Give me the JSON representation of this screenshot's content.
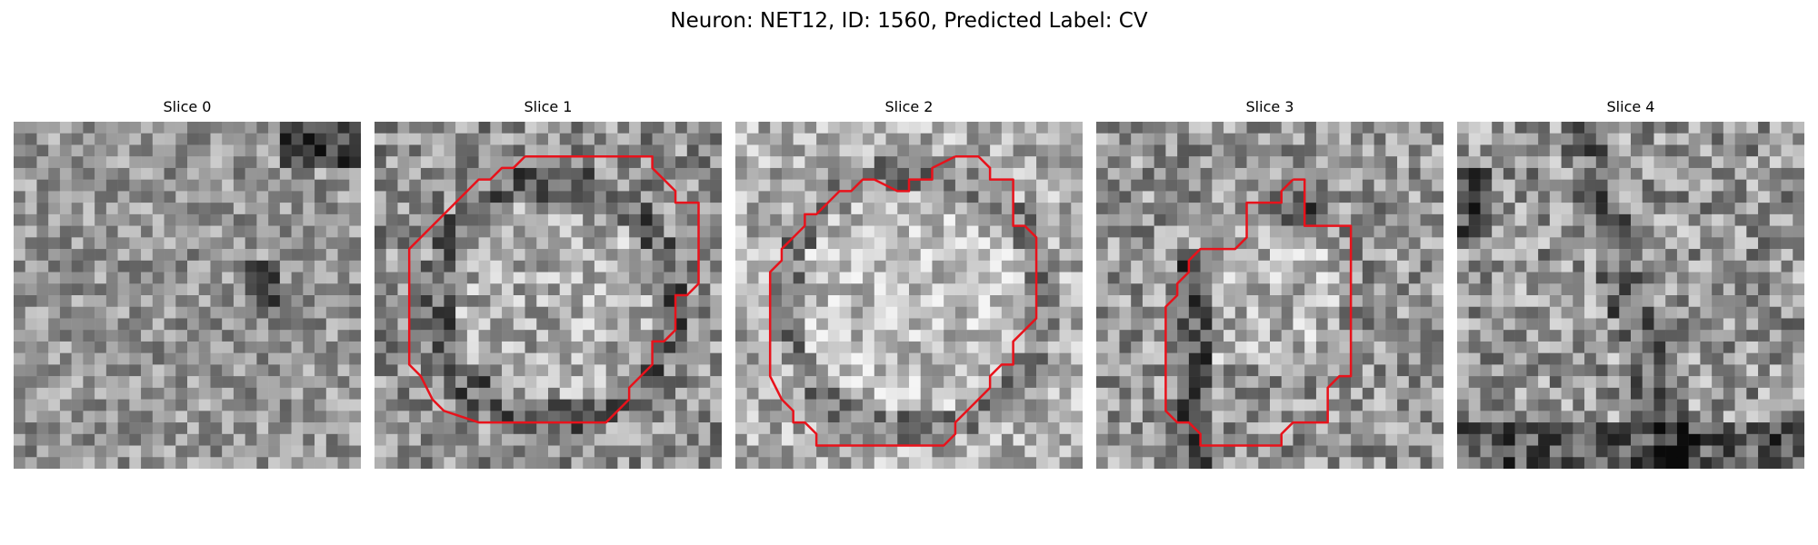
{
  "figure": {
    "title": "Neuron: NET12, ID: 1560, Predicted Label: CV",
    "contour_color": "#e8121b"
  },
  "panels": [
    {
      "title": "Slice 0",
      "has_contour": false,
      "mean_gray": 150,
      "contrast": 55
    },
    {
      "title": "Slice 1",
      "has_contour": true,
      "mean_gray": 140,
      "contrast": 65
    },
    {
      "title": "Slice 2",
      "has_contour": true,
      "mean_gray": 160,
      "contrast": 60
    },
    {
      "title": "Slice 3",
      "has_contour": true,
      "mean_gray": 150,
      "contrast": 65
    },
    {
      "title": "Slice 4",
      "has_contour": false,
      "mean_gray": 150,
      "contrast": 70
    }
  ]
}
